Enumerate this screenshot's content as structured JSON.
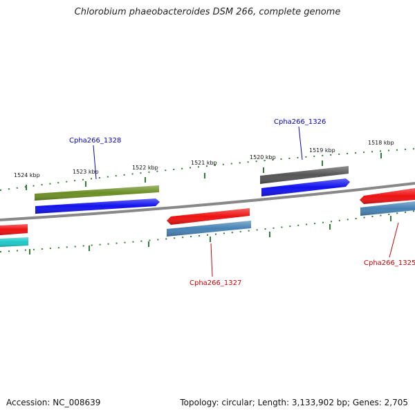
{
  "title": "Chlorobium phaeobacteroides DSM 266, complete genome",
  "footer": {
    "accession": "Accession: NC_008639",
    "summary": "Topology: circular; Length: 3,133,902 bp; Genes: 2,705"
  },
  "colors": {
    "backbone": "#888888",
    "ticks": "#2e7d32",
    "forward_label": "#0000cc",
    "reverse_label": "#cc0000",
    "red": "#ee1111",
    "blue": "#1111ee",
    "olive": "#6b8e23",
    "steel": "#4682b4",
    "gray": "#555555",
    "cyan": "#1ec8c8"
  },
  "ticks_kbp": [
    {
      "label": "1524 kbp"
    },
    {
      "label": "1523 kbp"
    },
    {
      "label": "1522 kbp"
    },
    {
      "label": "1521 kbp"
    },
    {
      "label": "1520 kbp"
    },
    {
      "label": "1519 kbp"
    },
    {
      "label": "1518 kbp"
    }
  ],
  "gene_labels": [
    {
      "text": "Cpha266_1328",
      "strand": "forward"
    },
    {
      "text": "Cpha266_1326",
      "strand": "forward"
    },
    {
      "text": "Cpha266_1327",
      "strand": "reverse"
    },
    {
      "text": "Cpha266_1325",
      "strand": "reverse"
    }
  ]
}
